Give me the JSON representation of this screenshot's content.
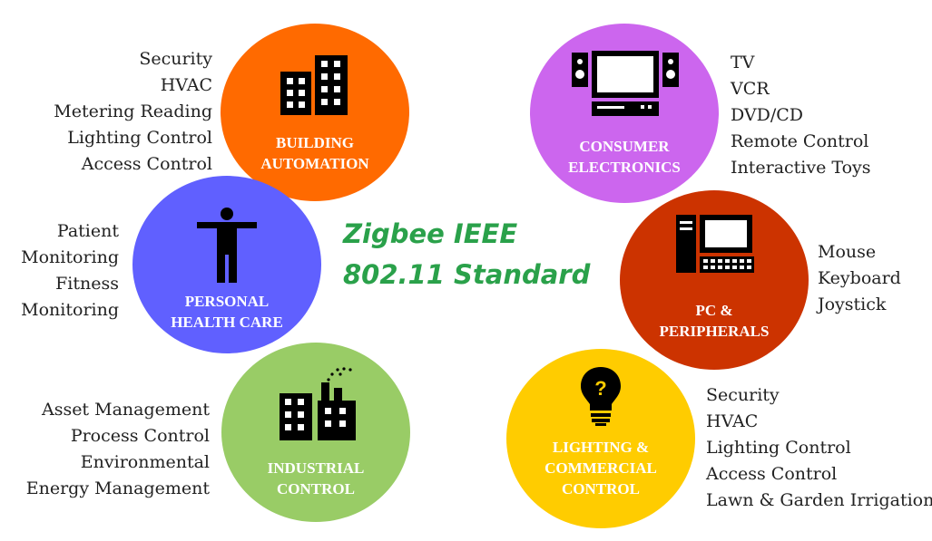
{
  "title": {
    "line1": "Zigbee IEEE",
    "line2": "802.11 Standard",
    "color": "#2aa14a"
  },
  "segments": {
    "building": {
      "label": [
        "BUILDING",
        "AUTOMATION"
      ],
      "color": "#ff6a00",
      "icon": "buildings-icon",
      "items": [
        "Security",
        "HVAC",
        "Metering Reading",
        "Lighting Control",
        "Access Control"
      ]
    },
    "consumer": {
      "label": [
        "CONSUMER",
        "ELECTRONICS"
      ],
      "color": "#cc66ee",
      "icon": "tv-speakers-icon",
      "items": [
        "TV",
        "VCR",
        "DVD/CD",
        "Remote Control",
        "Interactive Toys"
      ]
    },
    "health": {
      "label": [
        "PERSONAL",
        "HEALTH CARE"
      ],
      "color": "#6060ff",
      "icon": "person-icon",
      "items": [
        "Patient",
        "Monitoring",
        "Fitness",
        "Monitoring"
      ]
    },
    "pc": {
      "label": [
        "PC &",
        "PERIPHERALS"
      ],
      "color": "#cc3300",
      "icon": "computer-icon",
      "items": [
        "Mouse",
        "Keyboard",
        "Joystick"
      ]
    },
    "industrial": {
      "label": [
        "INDUSTRIAL",
        "CONTROL"
      ],
      "color": "#99cc66",
      "icon": "factory-icon",
      "items": [
        "Asset Management",
        "Process Control",
        "Environmental",
        "Energy Management"
      ]
    },
    "lighting": {
      "label": [
        "LIGHTING &",
        "COMMERCIAL",
        "CONTROL"
      ],
      "color": "#ffcc00",
      "icon": "light-bulb-icon",
      "items": [
        "Security",
        "HVAC",
        "Lighting Control",
        "Access Control",
        "Lawn & Garden Irrigation"
      ]
    }
  }
}
